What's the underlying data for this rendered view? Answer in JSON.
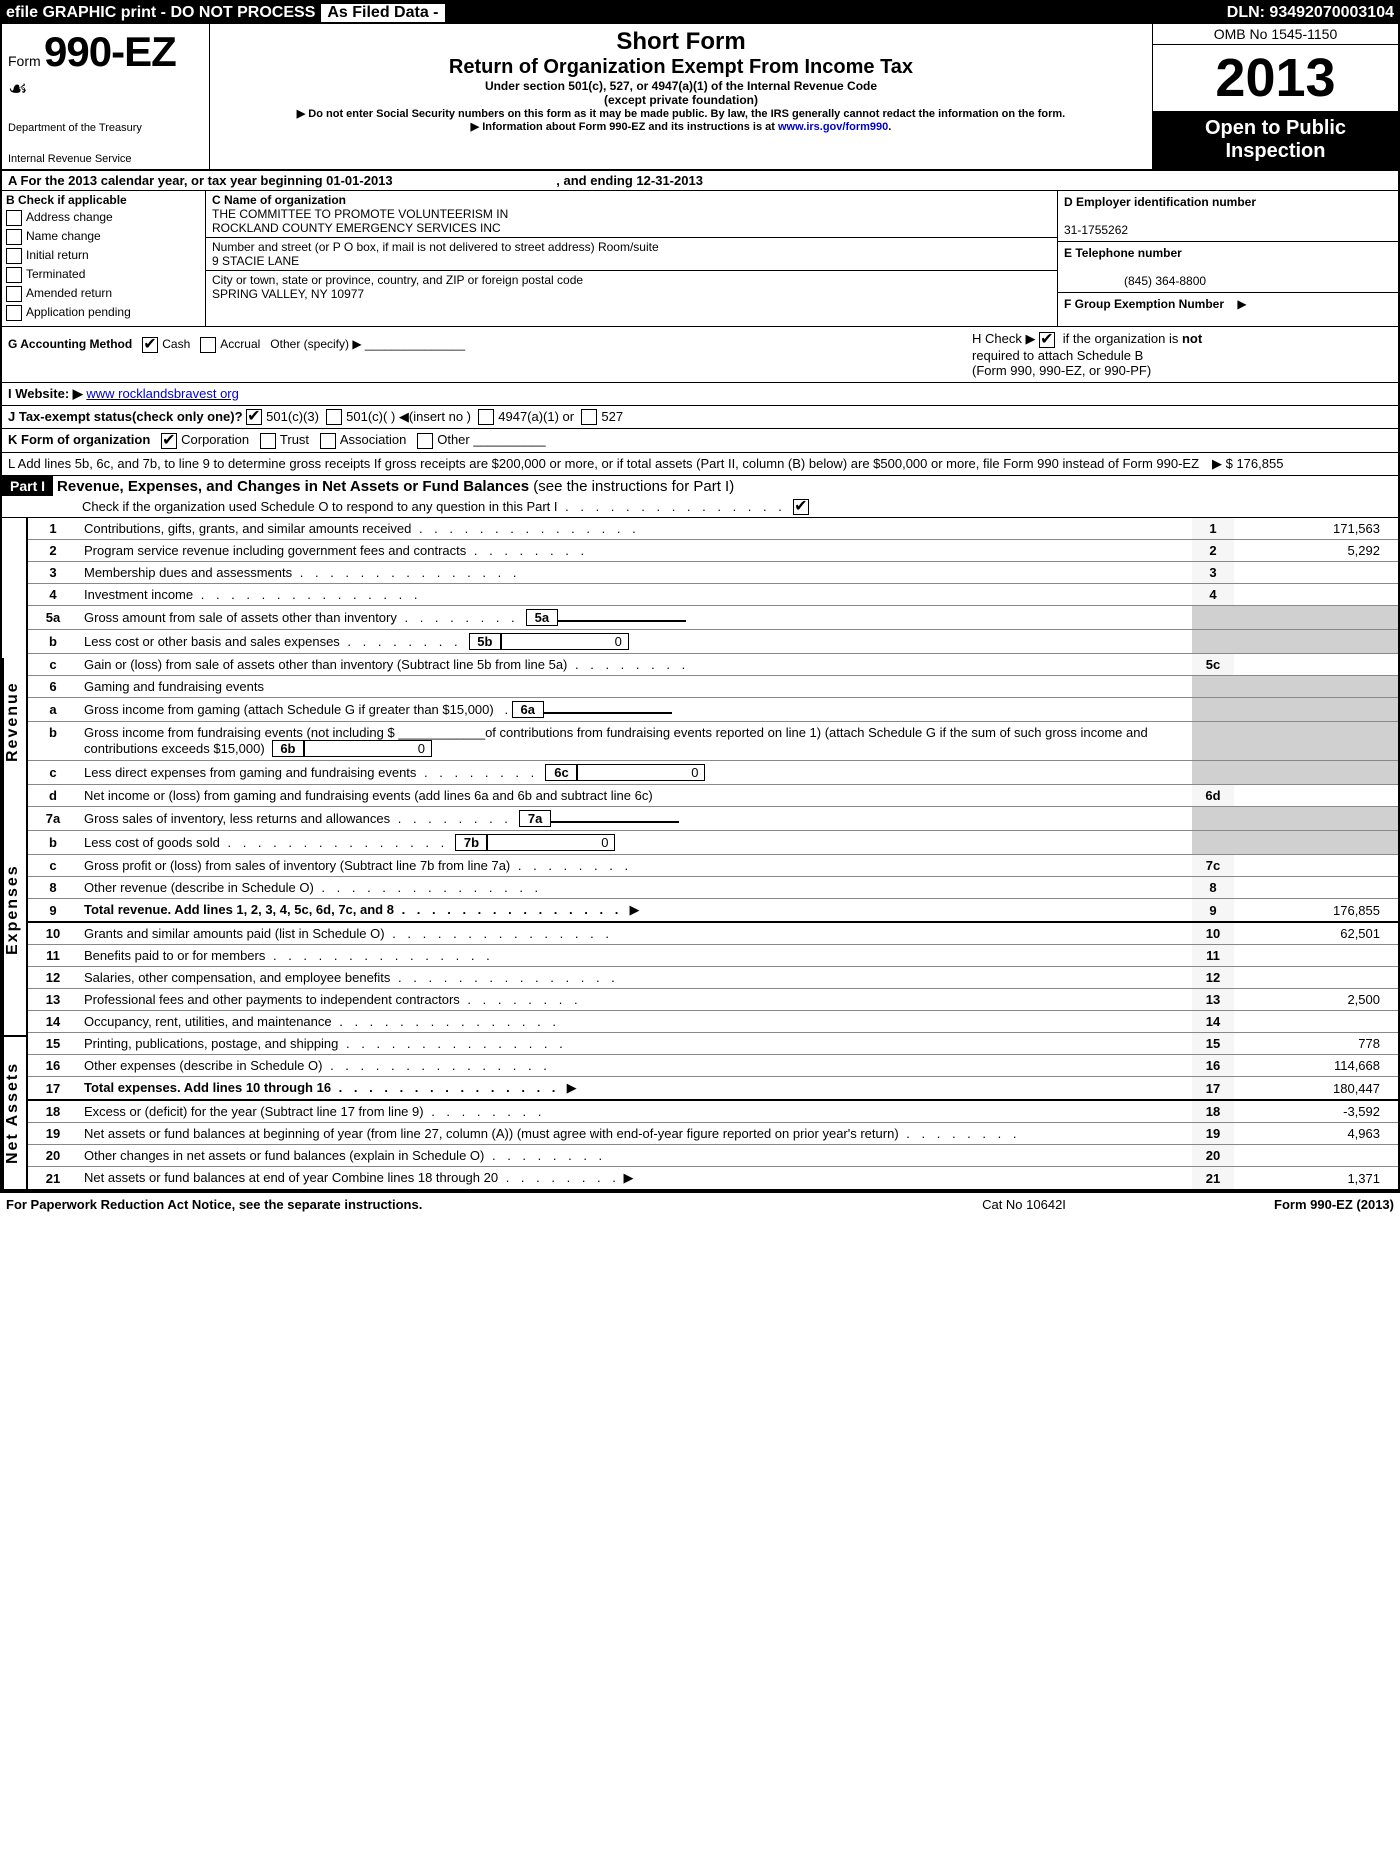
{
  "topbar": {
    "left": "efile GRAPHIC print - DO NOT PROCESS",
    "mid": "As Filed Data - ",
    "dln": "DLN: 93492070003104"
  },
  "header": {
    "form_prefix": "Form",
    "form_no": "990-EZ",
    "dept1": "Department of the Treasury",
    "dept2": "Internal Revenue Service",
    "short": "Short Form",
    "ret": "Return of Organization Exempt From Income Tax",
    "sub1": "Under section 501(c), 527, or 4947(a)(1) of the Internal Revenue Code",
    "sub2": "(except private foundation)",
    "note1": "▶ Do not enter Social Security numbers on this form as it may be made public. By law, the IRS generally cannot redact the information on the form.",
    "note2_pre": "▶ Information about Form 990-EZ and its instructions is at ",
    "note2_link": "www.irs.gov/form990",
    "omb": "OMB No  1545-1150",
    "year": "2013",
    "open1": "Open to Public",
    "open2": "Inspection"
  },
  "A": {
    "text_pre": "A  For the 2013 calendar year, or tax year beginning 01-01-2013",
    "text_end": ", and ending 12-31-2013"
  },
  "B": {
    "title": "B  Check if applicable",
    "items": [
      "Address change",
      "Name change",
      "Initial return",
      "Terminated",
      "Amended return",
      "Application pending"
    ]
  },
  "C": {
    "label": "C Name of organization",
    "name1": "THE COMMITTEE TO PROMOTE VOLUNTEERISM IN",
    "name2": "ROCKLAND COUNTY EMERGENCY SERVICES INC",
    "street_lbl": "Number and street (or P  O  box, if mail is not delivered to street address) Room/suite",
    "street": "9 STACIE LANE",
    "city_lbl": "City or town, state or province, country, and ZIP or foreign postal code",
    "city": "SPRING VALLEY, NY  10977"
  },
  "D": {
    "label": "D Employer identification number",
    "val": "31-1755262",
    "E_label": "E Telephone number",
    "E_val": "(845) 364-8800",
    "F_label": "F Group Exemption Number",
    "F_arrow": "▶"
  },
  "G": {
    "label": "G Accounting Method",
    "cash": "Cash",
    "accrual": "Accrual",
    "other": "Other (specify) ▶"
  },
  "H": {
    "text1": "H  Check ▶",
    "text2": "if the organization is ",
    "not": "not",
    "text3": "required to attach Schedule B",
    "text4": "(Form 990, 990-EZ, or 990-PF)"
  },
  "I": {
    "label": "I Website: ▶",
    "val": "www rocklandsbravest org"
  },
  "J": {
    "text": "J Tax-exempt status(check only one)?",
    "o1": "501(c)(3)",
    "o2": "501(c)(  ) ◀(insert no )",
    "o3": "4947(a)(1) or",
    "o4": "527"
  },
  "K": {
    "label": "K Form of organization",
    "o1": "Corporation",
    "o2": "Trust",
    "o3": "Association",
    "o4": "Other"
  },
  "L": {
    "text": "L Add lines 5b, 6c, and 7b, to line 9 to determine gross receipts  If gross receipts are $200,000 or more, or if total assets (Part II, column (B) below) are $500,000 or more, file Form 990 instead of Form 990-EZ",
    "val": "▶ $ 176,855"
  },
  "PartI": {
    "hdr": "Part I",
    "title": "Revenue, Expenses, and Changes in Net Assets or Fund Balances",
    "sub": "(see the instructions for Part I)",
    "check": "Check if the organization used Schedule O to respond to any question in this Part I"
  },
  "sidebars": {
    "rev": "Revenue",
    "exp": "Expenses",
    "net": "Net Assets"
  },
  "lines": {
    "l1": {
      "n": "1",
      "t": "Contributions, gifts, grants, and similar amounts received",
      "v": "171,563"
    },
    "l2": {
      "n": "2",
      "t": "Program service revenue including government fees and contracts",
      "v": "5,292"
    },
    "l3": {
      "n": "3",
      "t": "Membership dues and assessments",
      "v": ""
    },
    "l4": {
      "n": "4",
      "t": "Investment income",
      "v": ""
    },
    "l5a": {
      "n": "5a",
      "t": "Gross amount from sale of assets other than inventory",
      "sn": "5a",
      "sv": ""
    },
    "l5b": {
      "n": "b",
      "t": "Less  cost or other basis and sales expenses",
      "sn": "5b",
      "sv": "0"
    },
    "l5c": {
      "n": "c",
      "t": "Gain or (loss) from sale of assets other than inventory (Subtract line 5b from line 5a)",
      "rn": "5c",
      "v": ""
    },
    "l6": {
      "n": "6",
      "t": "Gaming and fundraising events"
    },
    "l6a": {
      "n": "a",
      "t": "Gross income from gaming (attach Schedule G if greater than $15,000)",
      "sn": "6a",
      "sv": ""
    },
    "l6b": {
      "n": "b",
      "t": "Gross income from fundraising events (not including $ ____________of contributions from fundraising events reported on line 1) (attach Schedule G if the sum of such gross income and contributions exceeds $15,000)",
      "sn": "6b",
      "sv": "0"
    },
    "l6c": {
      "n": "c",
      "t": "Less  direct expenses from gaming and fundraising events",
      "sn": "6c",
      "sv": "0"
    },
    "l6d": {
      "n": "d",
      "t": "Net income or (loss) from gaming and fundraising events (add lines 6a and 6b and subtract line 6c)",
      "rn": "6d",
      "v": ""
    },
    "l7a": {
      "n": "7a",
      "t": "Gross sales of inventory, less returns and allowances",
      "sn": "7a",
      "sv": ""
    },
    "l7b": {
      "n": "b",
      "t": "Less  cost of goods sold",
      "sn": "7b",
      "sv": "0"
    },
    "l7c": {
      "n": "c",
      "t": "Gross profit or (loss) from sales of inventory (Subtract line 7b from line 7a)",
      "rn": "7c",
      "v": ""
    },
    "l8": {
      "n": "8",
      "t": "Other revenue (describe in Schedule O)",
      "v": ""
    },
    "l9": {
      "n": "9",
      "t": "Total revenue. Add lines 1, 2, 3, 4, 5c, 6d, 7c, and 8",
      "v": "176,855",
      "bold": true,
      "arrow": true
    },
    "l10": {
      "n": "10",
      "t": "Grants and similar amounts paid (list in Schedule O)",
      "v": "62,501"
    },
    "l11": {
      "n": "11",
      "t": "Benefits paid to or for members",
      "v": ""
    },
    "l12": {
      "n": "12",
      "t": "Salaries, other compensation, and employee benefits",
      "v": ""
    },
    "l13": {
      "n": "13",
      "t": "Professional fees and other payments to independent contractors",
      "v": "2,500"
    },
    "l14": {
      "n": "14",
      "t": "Occupancy, rent, utilities, and maintenance",
      "v": ""
    },
    "l15": {
      "n": "15",
      "t": "Printing, publications, postage, and shipping",
      "v": "778"
    },
    "l16": {
      "n": "16",
      "t": "Other expenses (describe in Schedule O)",
      "v": "114,668"
    },
    "l17": {
      "n": "17",
      "t": "Total expenses. Add lines 10 through 16",
      "v": "180,447",
      "bold": true,
      "arrow": true
    },
    "l18": {
      "n": "18",
      "t": "Excess or (deficit) for the year (Subtract line 17 from line 9)",
      "v": "-3,592"
    },
    "l19": {
      "n": "19",
      "t": "Net assets or fund balances at beginning of year (from line 27, column (A)) (must agree with end-of-year figure reported on prior year's return)",
      "v": "4,963"
    },
    "l20": {
      "n": "20",
      "t": "Other changes in net assets or fund balances (explain in Schedule O)",
      "v": ""
    },
    "l21": {
      "n": "21",
      "t": "Net assets or fund balances at end of year  Combine lines 18 through 20",
      "v": "1,371",
      "arrow": true
    }
  },
  "footer": {
    "left": "For Paperwork Reduction Act Notice, see the separate instructions.",
    "mid": "Cat No  10642I",
    "right": "Form 990-EZ (2013)"
  }
}
